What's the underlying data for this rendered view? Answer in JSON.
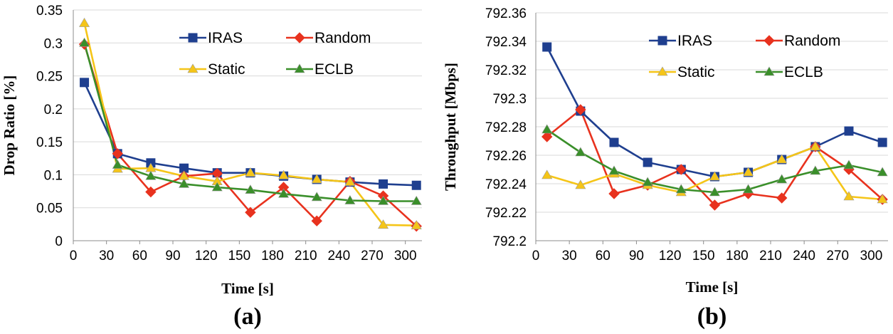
{
  "series_styles": [
    {
      "name": "IRAS",
      "color": "#1f3f8f",
      "marker": "square"
    },
    {
      "name": "Random",
      "color": "#e8321e",
      "marker": "diamond"
    },
    {
      "name": "Static",
      "color": "#f5c518",
      "marker": "triangle"
    },
    {
      "name": "ECLB",
      "color": "#3a8f2a",
      "marker": "triangle"
    }
  ],
  "chart_data": [
    {
      "type": "line",
      "panel_label": "(a)",
      "xlabel": "Time [s]",
      "ylabel": "Drop Ratio [%]",
      "x": [
        10,
        40,
        70,
        100,
        130,
        160,
        190,
        220,
        250,
        280,
        310
      ],
      "xticks": [
        0,
        30,
        60,
        90,
        120,
        150,
        180,
        210,
        240,
        270,
        300
      ],
      "xlim": [
        0,
        315
      ],
      "yticks": [
        0,
        0.05,
        0.1,
        0.15,
        0.2,
        0.25,
        0.3,
        0.35
      ],
      "ytick_labels": [
        "0",
        "0.05",
        "0.1",
        "0.15",
        "0.2",
        "0.25",
        "0.3",
        "0.35"
      ],
      "ylim": [
        0,
        0.35
      ],
      "legend": [
        "IRAS",
        "Random",
        "Static",
        "ECLB"
      ],
      "series": [
        {
          "name": "IRAS",
          "values": [
            0.24,
            0.132,
            0.118,
            0.11,
            0.103,
            0.103,
            0.098,
            0.093,
            0.089,
            0.086,
            0.084
          ]
        },
        {
          "name": "Random",
          "values": [
            0.298,
            0.132,
            0.074,
            0.098,
            0.102,
            0.043,
            0.081,
            0.03,
            0.09,
            0.068,
            0.022
          ]
        },
        {
          "name": "Static",
          "values": [
            0.33,
            0.109,
            0.11,
            0.098,
            0.09,
            0.103,
            0.099,
            0.093,
            0.089,
            0.024,
            0.023
          ]
        },
        {
          "name": "ECLB",
          "values": [
            0.3,
            0.115,
            0.098,
            0.086,
            0.081,
            0.077,
            0.071,
            0.066,
            0.061,
            0.06,
            0.06
          ]
        }
      ]
    },
    {
      "type": "line",
      "panel_label": "(b)",
      "xlabel": "Time [s]",
      "ylabel": "Throughput [Mbps]",
      "x": [
        10,
        40,
        70,
        100,
        130,
        160,
        190,
        220,
        250,
        280,
        310
      ],
      "xticks": [
        0,
        30,
        60,
        90,
        120,
        150,
        180,
        210,
        240,
        270,
        300
      ],
      "xlim": [
        0,
        315
      ],
      "yticks": [
        792.2,
        792.22,
        792.24,
        792.26,
        792.28,
        792.3,
        792.32,
        792.34,
        792.36
      ],
      "ytick_labels": [
        "792.2",
        "792.22",
        "792.24",
        "792.26",
        "792.28",
        "792.3",
        "792.32",
        "792.34",
        "792.36"
      ],
      "ylim": [
        792.2,
        792.36
      ],
      "legend": [
        "IRAS",
        "Random",
        "Static",
        "ECLB"
      ],
      "series": [
        {
          "name": "IRAS",
          "values": [
            792.336,
            792.291,
            792.269,
            792.255,
            792.25,
            792.245,
            792.248,
            792.257,
            792.266,
            792.277,
            792.269
          ]
        },
        {
          "name": "Random",
          "values": [
            792.273,
            792.292,
            792.233,
            792.239,
            792.25,
            792.225,
            792.233,
            792.23,
            792.266,
            792.25,
            792.229
          ]
        },
        {
          "name": "Static",
          "values": [
            792.246,
            792.239,
            792.247,
            792.239,
            792.234,
            792.245,
            792.248,
            792.257,
            792.266,
            792.231,
            792.229
          ]
        },
        {
          "name": "ECLB",
          "values": [
            792.278,
            792.262,
            792.249,
            792.241,
            792.236,
            792.234,
            792.236,
            792.243,
            792.249,
            792.253,
            792.248
          ]
        }
      ]
    }
  ]
}
